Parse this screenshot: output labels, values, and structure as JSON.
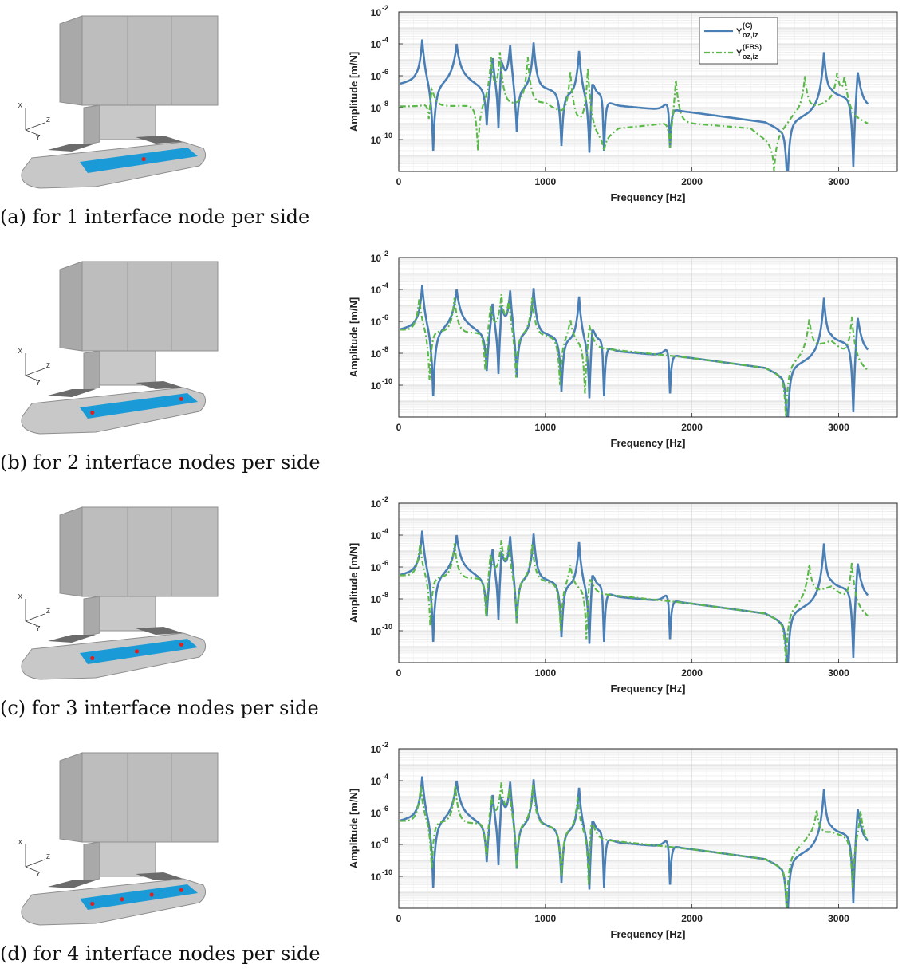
{
  "panels": [
    {
      "caption": "(a) for 1 interface node per side",
      "nodes": 1
    },
    {
      "caption": "(b) for 2 interface nodes per side",
      "nodes": 2
    },
    {
      "caption": "(c) for 3 interface nodes per side",
      "nodes": 3
    },
    {
      "caption": "(d) for 4 interface nodes per side",
      "nodes": 4
    }
  ],
  "model": {
    "axis_x": "X",
    "axis_y": "Y",
    "axis_z": "Z",
    "body_color": "#c8c8c8",
    "interface_color": "#1a9bd7",
    "node_color": "#e0201c"
  },
  "chart_data": {
    "type": "line",
    "title": "",
    "xlabel": "Frequency [Hz]",
    "ylabel": "Amplitude [m/N]",
    "xlim": [
      0,
      3400
    ],
    "ylim": [
      1e-12,
      0.01
    ],
    "yscale": "log",
    "grid": true,
    "legend_position": "top-right",
    "x_tick_labels": [
      "0",
      "1000",
      "2000",
      "3000"
    ],
    "y_tick_labels": [
      {
        "base": "10",
        "exp": "-2"
      },
      {
        "base": "10",
        "exp": "-4"
      },
      {
        "base": "10",
        "exp": "-6"
      },
      {
        "base": "10",
        "exp": "-8"
      },
      {
        "base": "10",
        "exp": "-10"
      }
    ],
    "legend": [
      {
        "main": "Y",
        "sup": "(C)",
        "sub": "oz,iz",
        "color": "#4a7fb5",
        "dash": "solid"
      },
      {
        "main": "Y",
        "sup": "(FBS)",
        "sub": "oz,iz",
        "color": "#5cb84b",
        "dash": "dashdot"
      }
    ],
    "coupled_series": {
      "name": "Y(C) oz,iz",
      "color": "#4a7fb5",
      "peaks": [
        [
          160,
          0.0002
        ],
        [
          395,
          0.0001
        ],
        [
          640,
          4e-05
        ],
        [
          700,
          0.00015
        ],
        [
          760,
          0.00015
        ],
        [
          920,
          0.00012
        ],
        [
          1230,
          4e-05
        ],
        [
          1320,
          6e-06
        ],
        [
          1390,
          3e-06
        ],
        [
          1840,
          4e-07
        ],
        [
          2900,
          3e-05
        ],
        [
          3130,
          1e-05
        ]
      ],
      "notches": [
        [
          235,
          2e-11
        ],
        [
          600,
          8e-10
        ],
        [
          680,
          5e-10
        ],
        [
          805,
          3e-10
        ],
        [
          1110,
          4e-11
        ],
        [
          1300,
          1.5e-11
        ],
        [
          1400,
          2e-11
        ],
        [
          1850,
          3e-11
        ],
        [
          2650,
          1e-13
        ],
        [
          3100,
          2e-12
        ]
      ],
      "baseline": [
        [
          0,
          3e-07
        ],
        [
          120,
          6e-07
        ],
        [
          260,
          1.5e-07
        ],
        [
          400,
          2e-06
        ],
        [
          600,
          1e-07
        ],
        [
          1000,
          1.5e-07
        ],
        [
          1380,
          2e-08
        ],
        [
          1500,
          1.3e-08
        ],
        [
          2000,
          5e-09
        ],
        [
          2500,
          1.2e-09
        ],
        [
          2600,
          4e-10
        ],
        [
          2800,
          5e-09
        ],
        [
          2950,
          8e-08
        ],
        [
          3100,
          3e-08
        ],
        [
          3200,
          1.3e-08
        ]
      ]
    },
    "fbs_series": [
      {
        "name": "Y(FBS) oz,iz",
        "nodes_per_side": 1,
        "color": "#5cb84b",
        "peaks": [
          [
            225,
            5e-07
          ],
          [
            630,
            1.5e-05
          ],
          [
            690,
            3e-05
          ],
          [
            880,
            1.5e-05
          ],
          [
            1170,
            2e-06
          ],
          [
            1290,
            3e-06
          ],
          [
            1890,
            1e-06
          ],
          [
            2770,
            1e-06
          ],
          [
            2990,
            1.5e-06
          ],
          [
            3040,
            1e-06
          ]
        ],
        "notches": [
          [
            205,
            2e-09
          ],
          [
            540,
            2e-11
          ],
          [
            1400,
            2e-11
          ],
          [
            1850,
            3e-11
          ],
          [
            2560,
            1e-12
          ]
        ],
        "baseline": [
          [
            0,
            1.2e-08
          ],
          [
            500,
            1.3e-08
          ],
          [
            1000,
            2e-08
          ],
          [
            1400,
            1e-10
          ],
          [
            1500,
            5e-10
          ],
          [
            1900,
            1.2e-09
          ],
          [
            2400,
            5e-10
          ],
          [
            2540,
            5e-11
          ],
          [
            2700,
            4e-09
          ],
          [
            3000,
            4e-08
          ],
          [
            3100,
            3e-09
          ],
          [
            3200,
            1e-09
          ]
        ]
      },
      {
        "name": "Y(FBS) oz,iz",
        "nodes_per_side": 2,
        "color": "#5cb84b",
        "peaks": [
          [
            140,
            3e-05
          ],
          [
            380,
            3e-05
          ],
          [
            625,
            2e-05
          ],
          [
            700,
            5e-05
          ],
          [
            750,
            3e-05
          ],
          [
            910,
            3e-05
          ],
          [
            1170,
            1.5e-06
          ],
          [
            1300,
            2e-06
          ],
          [
            2800,
            1.5e-06
          ],
          [
            3090,
            2e-06
          ]
        ],
        "notches": [
          [
            210,
            2e-10
          ],
          [
            590,
            8e-10
          ],
          [
            800,
            3e-10
          ],
          [
            1100,
            1e-10
          ],
          [
            1270,
            3e-11
          ],
          [
            2640,
            1e-12
          ]
        ],
        "baseline": [
          [
            0,
            3e-07
          ],
          [
            1000,
            1.2e-07
          ],
          [
            1380,
            2e-08
          ],
          [
            2000,
            5e-09
          ],
          [
            2500,
            1.2e-09
          ],
          [
            2600,
            4e-10
          ],
          [
            2800,
            2e-08
          ],
          [
            2950,
            6e-08
          ],
          [
            3050,
            1e-08
          ],
          [
            3200,
            8e-10
          ]
        ]
      },
      {
        "name": "Y(FBS) oz,iz",
        "nodes_per_side": 3,
        "color": "#5cb84b",
        "peaks": [
          [
            145,
            3e-05
          ],
          [
            380,
            3e-05
          ],
          [
            625,
            2e-05
          ],
          [
            700,
            5e-05
          ],
          [
            750,
            3e-05
          ],
          [
            910,
            3e-05
          ],
          [
            1170,
            1.5e-06
          ],
          [
            1300,
            2e-06
          ],
          [
            2800,
            1.5e-06
          ],
          [
            3090,
            2e-06
          ]
        ],
        "notches": [
          [
            215,
            2e-10
          ],
          [
            595,
            8e-10
          ],
          [
            805,
            3e-10
          ],
          [
            1105,
            1e-10
          ],
          [
            1280,
            3e-11
          ],
          [
            2640,
            1e-12
          ]
        ],
        "baseline": [
          [
            0,
            3e-07
          ],
          [
            1000,
            1.2e-07
          ],
          [
            1380,
            2e-08
          ],
          [
            2000,
            5e-09
          ],
          [
            2500,
            1.2e-09
          ],
          [
            2600,
            4e-10
          ],
          [
            2800,
            2e-08
          ],
          [
            2950,
            6e-08
          ],
          [
            3050,
            1e-08
          ],
          [
            3200,
            8e-10
          ]
        ]
      },
      {
        "name": "Y(FBS) oz,iz",
        "nodes_per_side": 4,
        "color": "#5cb84b",
        "peaks": [
          [
            150,
            5e-05
          ],
          [
            385,
            5e-05
          ],
          [
            630,
            3e-05
          ],
          [
            700,
            8e-05
          ],
          [
            755,
            5e-05
          ],
          [
            915,
            6e-05
          ],
          [
            1220,
            1e-05
          ],
          [
            1310,
            8e-06
          ],
          [
            2850,
            1.5e-06
          ],
          [
            3150,
            1.5e-06
          ]
        ],
        "notches": [
          [
            225,
            3e-10
          ],
          [
            598,
            8e-10
          ],
          [
            805,
            3e-10
          ],
          [
            1110,
            1e-10
          ],
          [
            1295,
            3e-11
          ],
          [
            2645,
            1e-12
          ],
          [
            3095,
            2e-11
          ]
        ],
        "baseline": [
          [
            0,
            3e-07
          ],
          [
            1000,
            1.5e-07
          ],
          [
            1380,
            2e-08
          ],
          [
            2000,
            5e-09
          ],
          [
            2500,
            1.2e-09
          ],
          [
            2600,
            4e-10
          ],
          [
            2800,
            3e-08
          ],
          [
            2950,
            6e-08
          ],
          [
            3100,
            2e-08
          ],
          [
            3200,
            1e-08
          ]
        ]
      }
    ]
  }
}
